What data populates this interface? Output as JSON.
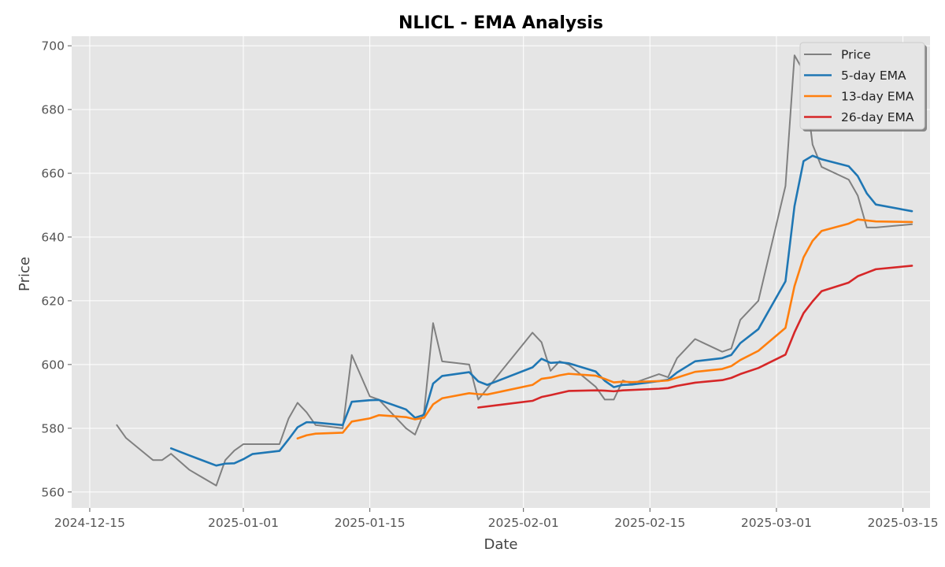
{
  "chart_data": {
    "type": "line",
    "title": "NLICL - EMA Analysis",
    "xlabel": "Date",
    "ylabel": "Price",
    "x_axis": {
      "type": "date",
      "min": "2024-12-13",
      "max": "2025-03-18",
      "ticks": [
        "2024-12-15",
        "2025-01-01",
        "2025-01-15",
        "2025-02-01",
        "2025-02-15",
        "2025-03-01",
        "2025-03-15"
      ]
    },
    "y_axis": {
      "min": 555,
      "max": 703,
      "ticks": [
        560,
        580,
        600,
        620,
        640,
        660,
        680,
        700
      ]
    },
    "grid": true,
    "legend_position": "top-right",
    "series": [
      {
        "name": "Price",
        "color": "#808080",
        "points": [
          [
            "2024-12-18",
            581
          ],
          [
            "2024-12-19",
            577
          ],
          [
            "2024-12-22",
            570
          ],
          [
            "2024-12-23",
            570
          ],
          [
            "2024-12-24",
            572
          ],
          [
            "2024-12-26",
            567
          ],
          [
            "2024-12-29",
            562
          ],
          [
            "2024-12-30",
            570
          ],
          [
            "2024-12-31",
            573
          ],
          [
            "2025-01-01",
            575
          ],
          [
            "2025-01-02",
            575
          ],
          [
            "2025-01-05",
            575
          ],
          [
            "2025-01-06",
            583
          ],
          [
            "2025-01-07",
            588
          ],
          [
            "2025-01-08",
            585
          ],
          [
            "2025-01-09",
            581
          ],
          [
            "2025-01-12",
            580
          ],
          [
            "2025-01-13",
            603
          ],
          [
            "2025-01-15",
            590
          ],
          [
            "2025-01-16",
            589
          ],
          [
            "2025-01-19",
            580
          ],
          [
            "2025-01-20",
            578
          ],
          [
            "2025-01-21",
            585
          ],
          [
            "2025-01-22",
            613
          ],
          [
            "2025-01-23",
            601
          ],
          [
            "2025-01-26",
            600
          ],
          [
            "2025-01-27",
            589
          ],
          [
            "2025-02-02",
            610
          ],
          [
            "2025-02-03",
            607
          ],
          [
            "2025-02-04",
            598
          ],
          [
            "2025-02-05",
            601
          ],
          [
            "2025-02-06",
            600
          ],
          [
            "2025-02-09",
            593
          ],
          [
            "2025-02-10",
            589
          ],
          [
            "2025-02-11",
            589
          ],
          [
            "2025-02-12",
            595
          ],
          [
            "2025-02-13",
            594
          ],
          [
            "2025-02-16",
            597
          ],
          [
            "2025-02-17",
            596
          ],
          [
            "2025-02-18",
            602
          ],
          [
            "2025-02-20",
            608
          ],
          [
            "2025-02-23",
            604
          ],
          [
            "2025-02-24",
            605
          ],
          [
            "2025-02-25",
            614
          ],
          [
            "2025-02-27",
            620
          ],
          [
            "2025-03-02",
            656
          ],
          [
            "2025-03-03",
            697
          ],
          [
            "2025-03-04",
            692
          ],
          [
            "2025-03-05",
            669
          ],
          [
            "2025-03-06",
            662
          ],
          [
            "2025-03-09",
            658
          ],
          [
            "2025-03-10",
            653
          ],
          [
            "2025-03-11",
            643
          ],
          [
            "2025-03-12",
            643
          ],
          [
            "2025-03-16",
            644
          ]
        ]
      },
      {
        "name": "5-day EMA",
        "color": "#1f77b4",
        "points": [
          [
            "2024-12-24",
            573.7
          ],
          [
            "2024-12-26",
            571.5
          ],
          [
            "2024-12-29",
            568.3
          ],
          [
            "2024-12-30",
            568.9
          ],
          [
            "2024-12-31",
            569.0
          ],
          [
            "2025-01-01",
            570.3
          ],
          [
            "2025-01-02",
            571.9
          ],
          [
            "2025-01-05",
            572.9
          ],
          [
            "2025-01-06",
            576.5
          ],
          [
            "2025-01-07",
            580.3
          ],
          [
            "2025-01-08",
            581.9
          ],
          [
            "2025-01-09",
            581.8
          ],
          [
            "2025-01-12",
            581.0
          ],
          [
            "2025-01-13",
            588.3
          ],
          [
            "2025-01-15",
            588.8
          ],
          [
            "2025-01-16",
            588.9
          ],
          [
            "2025-01-19",
            585.9
          ],
          [
            "2025-01-20",
            583.3
          ],
          [
            "2025-01-21",
            584.2
          ],
          [
            "2025-01-22",
            594.0
          ],
          [
            "2025-01-23",
            596.4
          ],
          [
            "2025-01-26",
            597.6
          ],
          [
            "2025-01-27",
            594.7
          ],
          [
            "2025-01-28",
            593.6
          ],
          [
            "2025-02-02",
            599.1
          ],
          [
            "2025-02-03",
            601.8
          ],
          [
            "2025-02-04",
            600.5
          ],
          [
            "2025-02-05",
            600.7
          ],
          [
            "2025-02-06",
            600.4
          ],
          [
            "2025-02-09",
            597.8
          ],
          [
            "2025-02-10",
            594.9
          ],
          [
            "2025-02-11",
            592.9
          ],
          [
            "2025-02-12",
            593.6
          ],
          [
            "2025-02-13",
            593.7
          ],
          [
            "2025-02-16",
            594.8
          ],
          [
            "2025-02-17",
            595.2
          ],
          [
            "2025-02-18",
            597.5
          ],
          [
            "2025-02-20",
            601.0
          ],
          [
            "2025-02-23",
            602.0
          ],
          [
            "2025-02-24",
            603.0
          ],
          [
            "2025-02-25",
            606.7
          ],
          [
            "2025-02-27",
            611.1
          ],
          [
            "2025-03-02",
            626.1
          ],
          [
            "2025-03-03",
            649.7
          ],
          [
            "2025-03-04",
            663.8
          ],
          [
            "2025-03-05",
            665.5
          ],
          [
            "2025-03-06",
            664.4
          ],
          [
            "2025-03-09",
            662.2
          ],
          [
            "2025-03-10",
            659.1
          ],
          [
            "2025-03-11",
            653.7
          ],
          [
            "2025-03-12",
            650.2
          ],
          [
            "2025-03-16",
            648.1
          ]
        ]
      },
      {
        "name": "13-day EMA",
        "color": "#ff7f0e",
        "points": [
          [
            "2025-01-07",
            576.8
          ],
          [
            "2025-01-08",
            577.8
          ],
          [
            "2025-01-09",
            578.3
          ],
          [
            "2025-01-12",
            578.6
          ],
          [
            "2025-01-13",
            582.1
          ],
          [
            "2025-01-15",
            583.1
          ],
          [
            "2025-01-16",
            584.1
          ],
          [
            "2025-01-19",
            583.5
          ],
          [
            "2025-01-20",
            582.8
          ],
          [
            "2025-01-21",
            583.3
          ],
          [
            "2025-01-22",
            587.5
          ],
          [
            "2025-01-23",
            589.4
          ],
          [
            "2025-01-26",
            591.0
          ],
          [
            "2025-01-27",
            590.7
          ],
          [
            "2025-01-28",
            590.6
          ],
          [
            "2025-02-02",
            593.6
          ],
          [
            "2025-02-03",
            595.5
          ],
          [
            "2025-02-04",
            595.9
          ],
          [
            "2025-02-05",
            596.6
          ],
          [
            "2025-02-06",
            597.1
          ],
          [
            "2025-02-09",
            596.5
          ],
          [
            "2025-02-10",
            595.5
          ],
          [
            "2025-02-11",
            594.4
          ],
          [
            "2025-02-12",
            594.6
          ],
          [
            "2025-02-13",
            594.5
          ],
          [
            "2025-02-16",
            594.8
          ],
          [
            "2025-02-17",
            595.0
          ],
          [
            "2025-02-18",
            595.9
          ],
          [
            "2025-02-20",
            597.7
          ],
          [
            "2025-02-23",
            598.6
          ],
          [
            "2025-02-24",
            599.5
          ],
          [
            "2025-02-25",
            601.4
          ],
          [
            "2025-02-27",
            604.3
          ],
          [
            "2025-03-02",
            611.5
          ],
          [
            "2025-03-03",
            624.6
          ],
          [
            "2025-03-04",
            633.6
          ],
          [
            "2025-03-05",
            638.8
          ],
          [
            "2025-03-06",
            641.9
          ],
          [
            "2025-03-09",
            644.2
          ],
          [
            "2025-03-10",
            645.5
          ],
          [
            "2025-03-11",
            645.2
          ],
          [
            "2025-03-12",
            644.9
          ],
          [
            "2025-03-16",
            644.7
          ]
        ]
      },
      {
        "name": "26-day EMA",
        "color": "#d62728",
        "points": [
          [
            "2025-01-27",
            586.5
          ],
          [
            "2025-02-02",
            588.6
          ],
          [
            "2025-02-03",
            589.8
          ],
          [
            "2025-02-04",
            590.4
          ],
          [
            "2025-02-06",
            591.7
          ],
          [
            "2025-02-09",
            591.9
          ],
          [
            "2025-02-10",
            591.8
          ],
          [
            "2025-02-11",
            591.6
          ],
          [
            "2025-02-12",
            591.9
          ],
          [
            "2025-02-16",
            592.4
          ],
          [
            "2025-02-17",
            592.6
          ],
          [
            "2025-02-18",
            593.3
          ],
          [
            "2025-02-20",
            594.3
          ],
          [
            "2025-02-23",
            595.1
          ],
          [
            "2025-02-24",
            595.8
          ],
          [
            "2025-02-25",
            597.0
          ],
          [
            "2025-02-27",
            598.9
          ],
          [
            "2025-03-02",
            603.1
          ],
          [
            "2025-03-03",
            610.1
          ],
          [
            "2025-03-04",
            616.1
          ],
          [
            "2025-03-05",
            619.8
          ],
          [
            "2025-03-06",
            623.0
          ],
          [
            "2025-03-09",
            625.7
          ],
          [
            "2025-03-10",
            627.7
          ],
          [
            "2025-03-11",
            628.8
          ],
          [
            "2025-03-12",
            629.9
          ],
          [
            "2025-03-16",
            631.0
          ]
        ]
      }
    ]
  }
}
